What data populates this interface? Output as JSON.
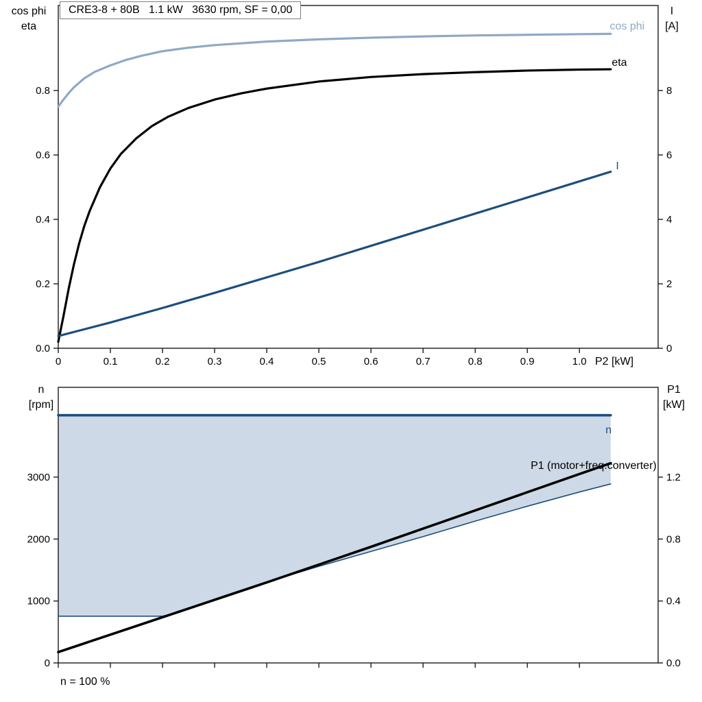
{
  "title_box": {
    "text": "CRE3-8 + 80B   1.1 kW   3630 rpm, SF = 0,00"
  },
  "footer": {
    "text": "n = 100 %"
  },
  "colors": {
    "frame": "#1a1a1a",
    "cos_phi": "#8ea9c6",
    "eta": "#000000",
    "current": "#1c4e7d",
    "speed": "#1c4e7d",
    "speed_min": "#1c4e7d",
    "p1": "#000000",
    "fill": "#cdd9e6"
  },
  "chart_data": [
    {
      "id": "top",
      "type": "line",
      "title": "CRE3-8 + 80B   1.1 kW   3630 rpm, SF = 0,00",
      "axes": {
        "x": {
          "label": "P2 [kW]",
          "min": 0,
          "max": 1.151,
          "ticks": [
            0,
            0.1,
            0.2,
            0.3,
            0.4,
            0.5,
            0.6,
            0.7,
            0.8,
            0.9,
            1.0
          ],
          "tick_labels": [
            "0",
            "0.1",
            "0.2",
            "0.3",
            "0.4",
            "0.5",
            "0.6",
            "0.7",
            "0.8",
            "0.9",
            "1.0"
          ]
        },
        "y_left": {
          "title_lines": [
            "cos phi",
            "eta"
          ],
          "min": 0,
          "max": 1.064,
          "ticks": [
            0,
            0.2,
            0.4,
            0.6,
            0.8
          ],
          "tick_labels": [
            "0.0",
            "0.2",
            "0.4",
            "0.6",
            "0.8"
          ]
        },
        "y_right": {
          "title_lines": [
            "I",
            "[A]"
          ],
          "min": 0,
          "max": 10.64,
          "ticks": [
            0,
            2,
            4,
            6,
            8
          ],
          "tick_labels": [
            "0",
            "2",
            "4",
            "6",
            "8"
          ]
        }
      },
      "series": [
        {
          "name": "cos phi",
          "axis": "left",
          "color_key": "cos_phi",
          "width": 3.2,
          "x": [
            0,
            0.01,
            0.02,
            0.03,
            0.05,
            0.07,
            0.1,
            0.13,
            0.16,
            0.2,
            0.25,
            0.3,
            0.4,
            0.5,
            0.6,
            0.7,
            0.8,
            0.9,
            1.0,
            1.06
          ],
          "y": [
            0.75,
            0.772,
            0.792,
            0.81,
            0.838,
            0.858,
            0.878,
            0.895,
            0.908,
            0.922,
            0.933,
            0.941,
            0.952,
            0.959,
            0.964,
            0.968,
            0.971,
            0.973,
            0.975,
            0.976
          ],
          "label": {
            "text": "cos phi",
            "x": 1.125,
            "y": 0.99,
            "anchor": "end",
            "axis": "left"
          }
        },
        {
          "name": "eta",
          "axis": "left",
          "color_key": "eta",
          "width": 3.2,
          "x": [
            0,
            0.01,
            0.02,
            0.03,
            0.04,
            0.05,
            0.06,
            0.08,
            0.1,
            0.12,
            0.15,
            0.18,
            0.21,
            0.25,
            0.3,
            0.35,
            0.4,
            0.5,
            0.6,
            0.7,
            0.8,
            0.9,
            1.0,
            1.06
          ],
          "y": [
            0.02,
            0.1,
            0.185,
            0.26,
            0.325,
            0.38,
            0.425,
            0.5,
            0.558,
            0.603,
            0.652,
            0.69,
            0.718,
            0.746,
            0.772,
            0.791,
            0.806,
            0.828,
            0.842,
            0.851,
            0.857,
            0.862,
            0.865,
            0.866
          ],
          "label": {
            "text": "eta",
            "x": 1.062,
            "y": 0.877,
            "anchor": "start",
            "axis": "left"
          }
        },
        {
          "name": "I",
          "axis": "right",
          "color_key": "current",
          "width": 3.2,
          "x": [
            0,
            0.1,
            0.2,
            0.3,
            0.4,
            0.5,
            0.6,
            0.7,
            0.8,
            0.9,
            1.0,
            1.06
          ],
          "y": [
            0.38,
            0.8,
            1.25,
            1.72,
            2.2,
            2.68,
            3.18,
            3.68,
            4.18,
            4.68,
            5.18,
            5.48
          ],
          "label": {
            "text": "I",
            "x": 1.07,
            "y": 5.55,
            "anchor": "start",
            "axis": "right"
          }
        }
      ]
    },
    {
      "id": "bottom",
      "type": "line",
      "axes": {
        "x": {
          "label": "",
          "min": 0,
          "max": 1.151,
          "ticks": [
            0,
            0.1,
            0.2,
            0.3,
            0.4,
            0.5,
            0.6,
            0.7,
            0.8,
            0.9,
            1.0
          ],
          "tick_labels": []
        },
        "y_left": {
          "title_lines": [
            "n",
            "[rpm]"
          ],
          "min": 0,
          "max": 4450,
          "ticks": [
            0,
            1000,
            2000,
            3000
          ],
          "tick_labels": [
            "0",
            "1000",
            "2000",
            "3000"
          ]
        },
        "y_right": {
          "title_lines": [
            "P1",
            "[kW]"
          ],
          "min": 0,
          "max": 1.78,
          "ticks": [
            0,
            0.4,
            0.8,
            1.2
          ],
          "tick_labels": [
            "0.0",
            "0.4",
            "0.8",
            "1.2"
          ]
        }
      },
      "fill_between": {
        "upper_series": "n",
        "lower_series": "n min",
        "color_key": "fill"
      },
      "series": [
        {
          "name": "n min",
          "axis": "left",
          "color_key": "speed_min",
          "width": 1.6,
          "x": [
            0,
            0.2,
            0.22,
            0.25,
            0.3,
            0.35,
            0.4,
            0.5,
            0.6,
            0.7,
            0.8,
            0.9,
            1.0,
            1.06
          ],
          "y": [
            755,
            755,
            790,
            880,
            1030,
            1170,
            1305,
            1560,
            1800,
            2040,
            2290,
            2530,
            2760,
            2890
          ]
        },
        {
          "name": "n",
          "axis": "left",
          "color_key": "speed",
          "width": 3.6,
          "x": [
            0,
            1.06
          ],
          "y": [
            4000,
            4000
          ],
          "label": {
            "text": "n",
            "x": 1.05,
            "y": 3710,
            "anchor": "start",
            "axis": "left"
          }
        },
        {
          "name": "P1 (motor+freq.converter)",
          "axis": "right",
          "color_key": "p1",
          "width": 3.6,
          "x": [
            0,
            0.2,
            0.4,
            0.6,
            0.8,
            1.0,
            1.06
          ],
          "y": [
            0.07,
            0.295,
            0.52,
            0.75,
            0.985,
            1.22,
            1.29
          ],
          "label": {
            "text": "P1 (motor+freq.converter)",
            "x": 1.148,
            "y": 1.253,
            "anchor": "end",
            "axis": "right"
          }
        }
      ]
    }
  ]
}
